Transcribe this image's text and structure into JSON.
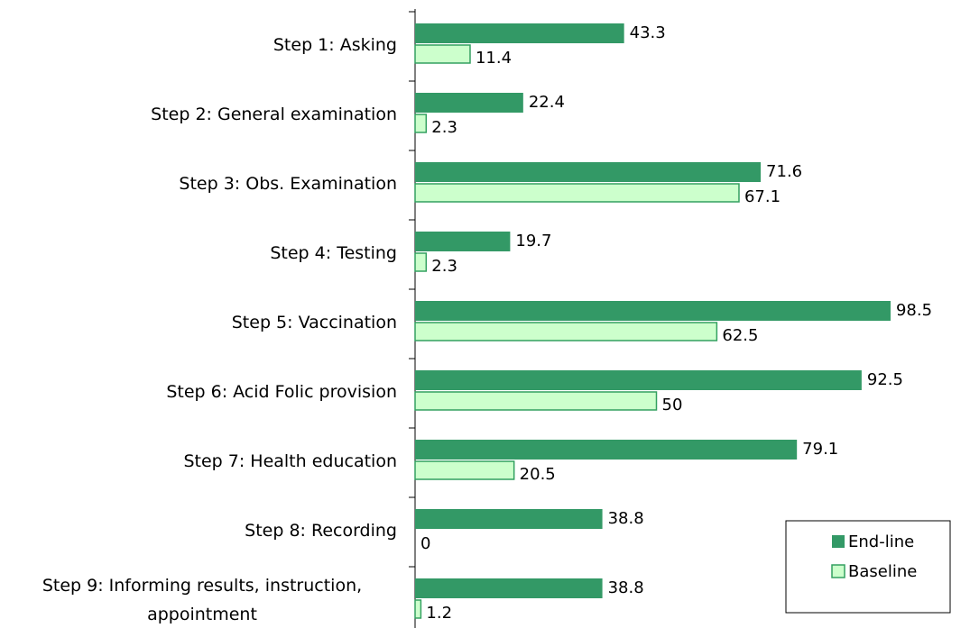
{
  "chart_data": {
    "type": "bar",
    "orientation": "horizontal",
    "categories": [
      "Step 1: Asking",
      "Step 2: General examination",
      "Step 3: Obs. Examination",
      "Step 4: Testing",
      "Step 5: Vaccination",
      "Step 6: Acid Folic provision",
      "Step 7: Health education",
      "Step 8: Recording",
      "Step 9: Informing results, instruction, appointment"
    ],
    "series": [
      {
        "name": "End-line",
        "color": "#339966",
        "values": [
          43.3,
          22.4,
          71.6,
          19.7,
          98.5,
          92.5,
          79.1,
          38.8,
          38.8
        ]
      },
      {
        "name": "Baseline",
        "color": "#ccffcc",
        "values": [
          11.4,
          2.3,
          67.1,
          2.3,
          62.5,
          50,
          20.5,
          0,
          1.2
        ]
      }
    ],
    "xlim": [
      0,
      100
    ],
    "legend": "lower right"
  }
}
